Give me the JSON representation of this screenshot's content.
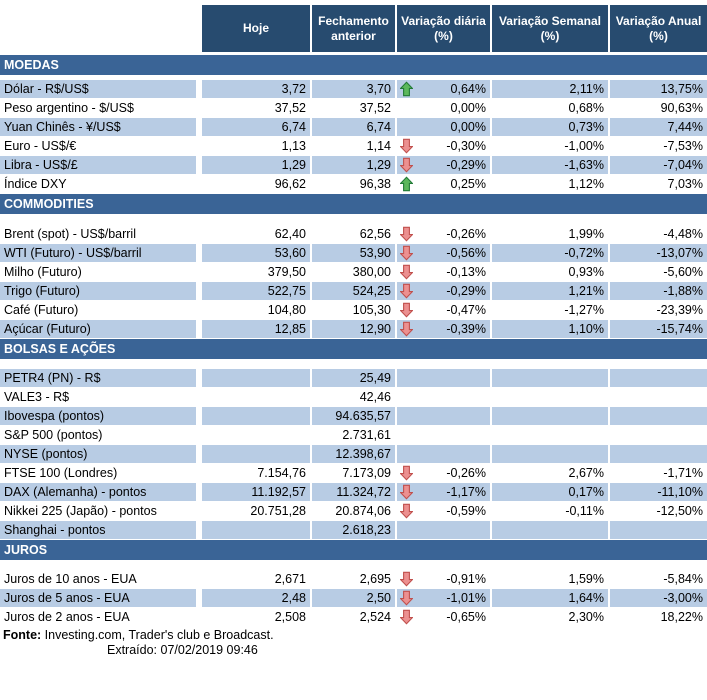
{
  "header": {
    "columns": [
      "Hoje",
      "Fechamento anterior",
      "Variação diária (%)",
      "Variação Semanal (%)",
      "Variação Anual (%)"
    ]
  },
  "sections": [
    {
      "title": "MOEDAS",
      "rows": [
        {
          "label": "Dólar - R$/US$",
          "hoje": "3,72",
          "prev": "3,70",
          "arrow": "up",
          "daily": "0,64%",
          "weekly": "2,11%",
          "annual": "13,75%",
          "shade": true
        },
        {
          "label": "Peso argentino - $/US$",
          "hoje": "37,52",
          "prev": "37,52",
          "arrow": "",
          "daily": "0,00%",
          "weekly": "0,68%",
          "annual": "90,63%",
          "shade": false
        },
        {
          "label": "Yuan Chinês - ¥/US$",
          "hoje": "6,74",
          "prev": "6,74",
          "arrow": "",
          "daily": "0,00%",
          "weekly": "0,73%",
          "annual": "7,44%",
          "shade": true
        },
        {
          "label": "Euro - US$/€",
          "hoje": "1,13",
          "prev": "1,14",
          "arrow": "down",
          "daily": "-0,30%",
          "weekly": "-1,00%",
          "annual": "-7,53%",
          "shade": false
        },
        {
          "label": "Libra - US$/£",
          "hoje": "1,29",
          "prev": "1,29",
          "arrow": "down",
          "daily": "-0,29%",
          "weekly": "-1,63%",
          "annual": "-7,04%",
          "shade": true
        },
        {
          "label": "Índice DXY",
          "hoje": "96,62",
          "prev": "96,38",
          "arrow": "up",
          "daily": "0,25%",
          "weekly": "1,12%",
          "annual": "7,03%",
          "shade": false
        }
      ]
    },
    {
      "title": "COMMODITIES",
      "rows": [
        {
          "label": "Brent (spot) - US$/barril",
          "hoje": "62,40",
          "prev": "62,56",
          "arrow": "down",
          "daily": "-0,26%",
          "weekly": "1,99%",
          "annual": "-4,48%",
          "shade": false
        },
        {
          "label": "WTI (Futuro) - US$/barril",
          "hoje": "53,60",
          "prev": "53,90",
          "arrow": "down",
          "daily": "-0,56%",
          "weekly": "-0,72%",
          "annual": "-13,07%",
          "shade": true
        },
        {
          "label": "Milho (Futuro)",
          "hoje": "379,50",
          "prev": "380,00",
          "arrow": "down",
          "daily": "-0,13%",
          "weekly": "0,93%",
          "annual": "-5,60%",
          "shade": false
        },
        {
          "label": "Trigo (Futuro)",
          "hoje": "522,75",
          "prev": "524,25",
          "arrow": "down",
          "daily": "-0,29%",
          "weekly": "1,21%",
          "annual": "-1,88%",
          "shade": true
        },
        {
          "label": "Café (Futuro)",
          "hoje": "104,80",
          "prev": "105,30",
          "arrow": "down",
          "daily": "-0,47%",
          "weekly": "-1,27%",
          "annual": "-23,39%",
          "shade": false
        },
        {
          "label": "Açúcar (Futuro)",
          "hoje": "12,85",
          "prev": "12,90",
          "arrow": "down",
          "daily": "-0,39%",
          "weekly": "1,10%",
          "annual": "-15,74%",
          "shade": true
        }
      ]
    },
    {
      "title": "BOLSAS E AÇÕES",
      "rows": [
        {
          "label": "PETR4 (PN) - R$",
          "hoje": "",
          "prev": "25,49",
          "arrow": "",
          "daily": "",
          "weekly": "",
          "annual": "",
          "shade": true
        },
        {
          "label": "VALE3 - R$",
          "hoje": "",
          "prev": "42,46",
          "arrow": "",
          "daily": "",
          "weekly": "",
          "annual": "",
          "shade": false
        },
        {
          "label": "Ibovespa (pontos)",
          "hoje": "",
          "prev": "94.635,57",
          "arrow": "",
          "daily": "",
          "weekly": "",
          "annual": "",
          "shade": true
        },
        {
          "label": "S&P 500 (pontos)",
          "hoje": "",
          "prev": "2.731,61",
          "arrow": "",
          "daily": "",
          "weekly": "",
          "annual": "",
          "shade": false
        },
        {
          "label": "NYSE (pontos)",
          "hoje": "",
          "prev": "12.398,67",
          "arrow": "",
          "daily": "",
          "weekly": "",
          "annual": "",
          "shade": true
        },
        {
          "label": "FTSE 100 (Londres)",
          "hoje": "7.154,76",
          "prev": "7.173,09",
          "arrow": "down",
          "daily": "-0,26%",
          "weekly": "2,67%",
          "annual": "-1,71%",
          "shade": false
        },
        {
          "label": "DAX (Alemanha) - pontos",
          "hoje": "11.192,57",
          "prev": "11.324,72",
          "arrow": "down",
          "daily": "-1,17%",
          "weekly": "0,17%",
          "annual": "-11,10%",
          "shade": true
        },
        {
          "label": "Nikkei 225 (Japão) - pontos",
          "hoje": "20.751,28",
          "prev": "20.874,06",
          "arrow": "down",
          "daily": "-0,59%",
          "weekly": "-0,11%",
          "annual": "-12,50%",
          "shade": false
        },
        {
          "label": "Shanghai - pontos",
          "hoje": "",
          "prev": "2.618,23",
          "arrow": "",
          "daily": "",
          "weekly": "",
          "annual": "",
          "shade": true
        }
      ]
    },
    {
      "title": "JUROS",
      "rows": [
        {
          "label": "Juros de 10 anos - EUA",
          "hoje": "2,671",
          "prev": "2,695",
          "arrow": "down",
          "daily": "-0,91%",
          "weekly": "1,59%",
          "annual": "-5,84%",
          "shade": false
        },
        {
          "label": "Juros de 5 anos - EUA",
          "hoje": "2,48",
          "prev": "2,50",
          "arrow": "down",
          "daily": "-1,01%",
          "weekly": "1,64%",
          "annual": "-3,00%",
          "shade": true
        },
        {
          "label": "Juros de 2 anos - EUA",
          "hoje": "2,508",
          "prev": "2,524",
          "arrow": "down",
          "daily": "-0,65%",
          "weekly": "2,30%",
          "annual": "18,22%",
          "shade": false
        }
      ]
    }
  ],
  "footer": {
    "source_label": "Fonte:",
    "source_text": " Investing.com, Trader's club e Broadcast.",
    "extracted_label": "Extraído: ",
    "extracted_value": " 07/02/2019 09:46"
  },
  "colors": {
    "header_bg": "#274b6f",
    "section_band_bg": "#3a6496",
    "shaded_row_bg": "#b8cce4",
    "arrow_up_fill": "#5cb85c",
    "arrow_up_stroke": "#217a36",
    "arrow_down_fill": "#ec9090",
    "arrow_down_stroke": "#c0504d"
  },
  "icons": {
    "up": "arrow-up-icon",
    "down": "arrow-down-icon"
  }
}
